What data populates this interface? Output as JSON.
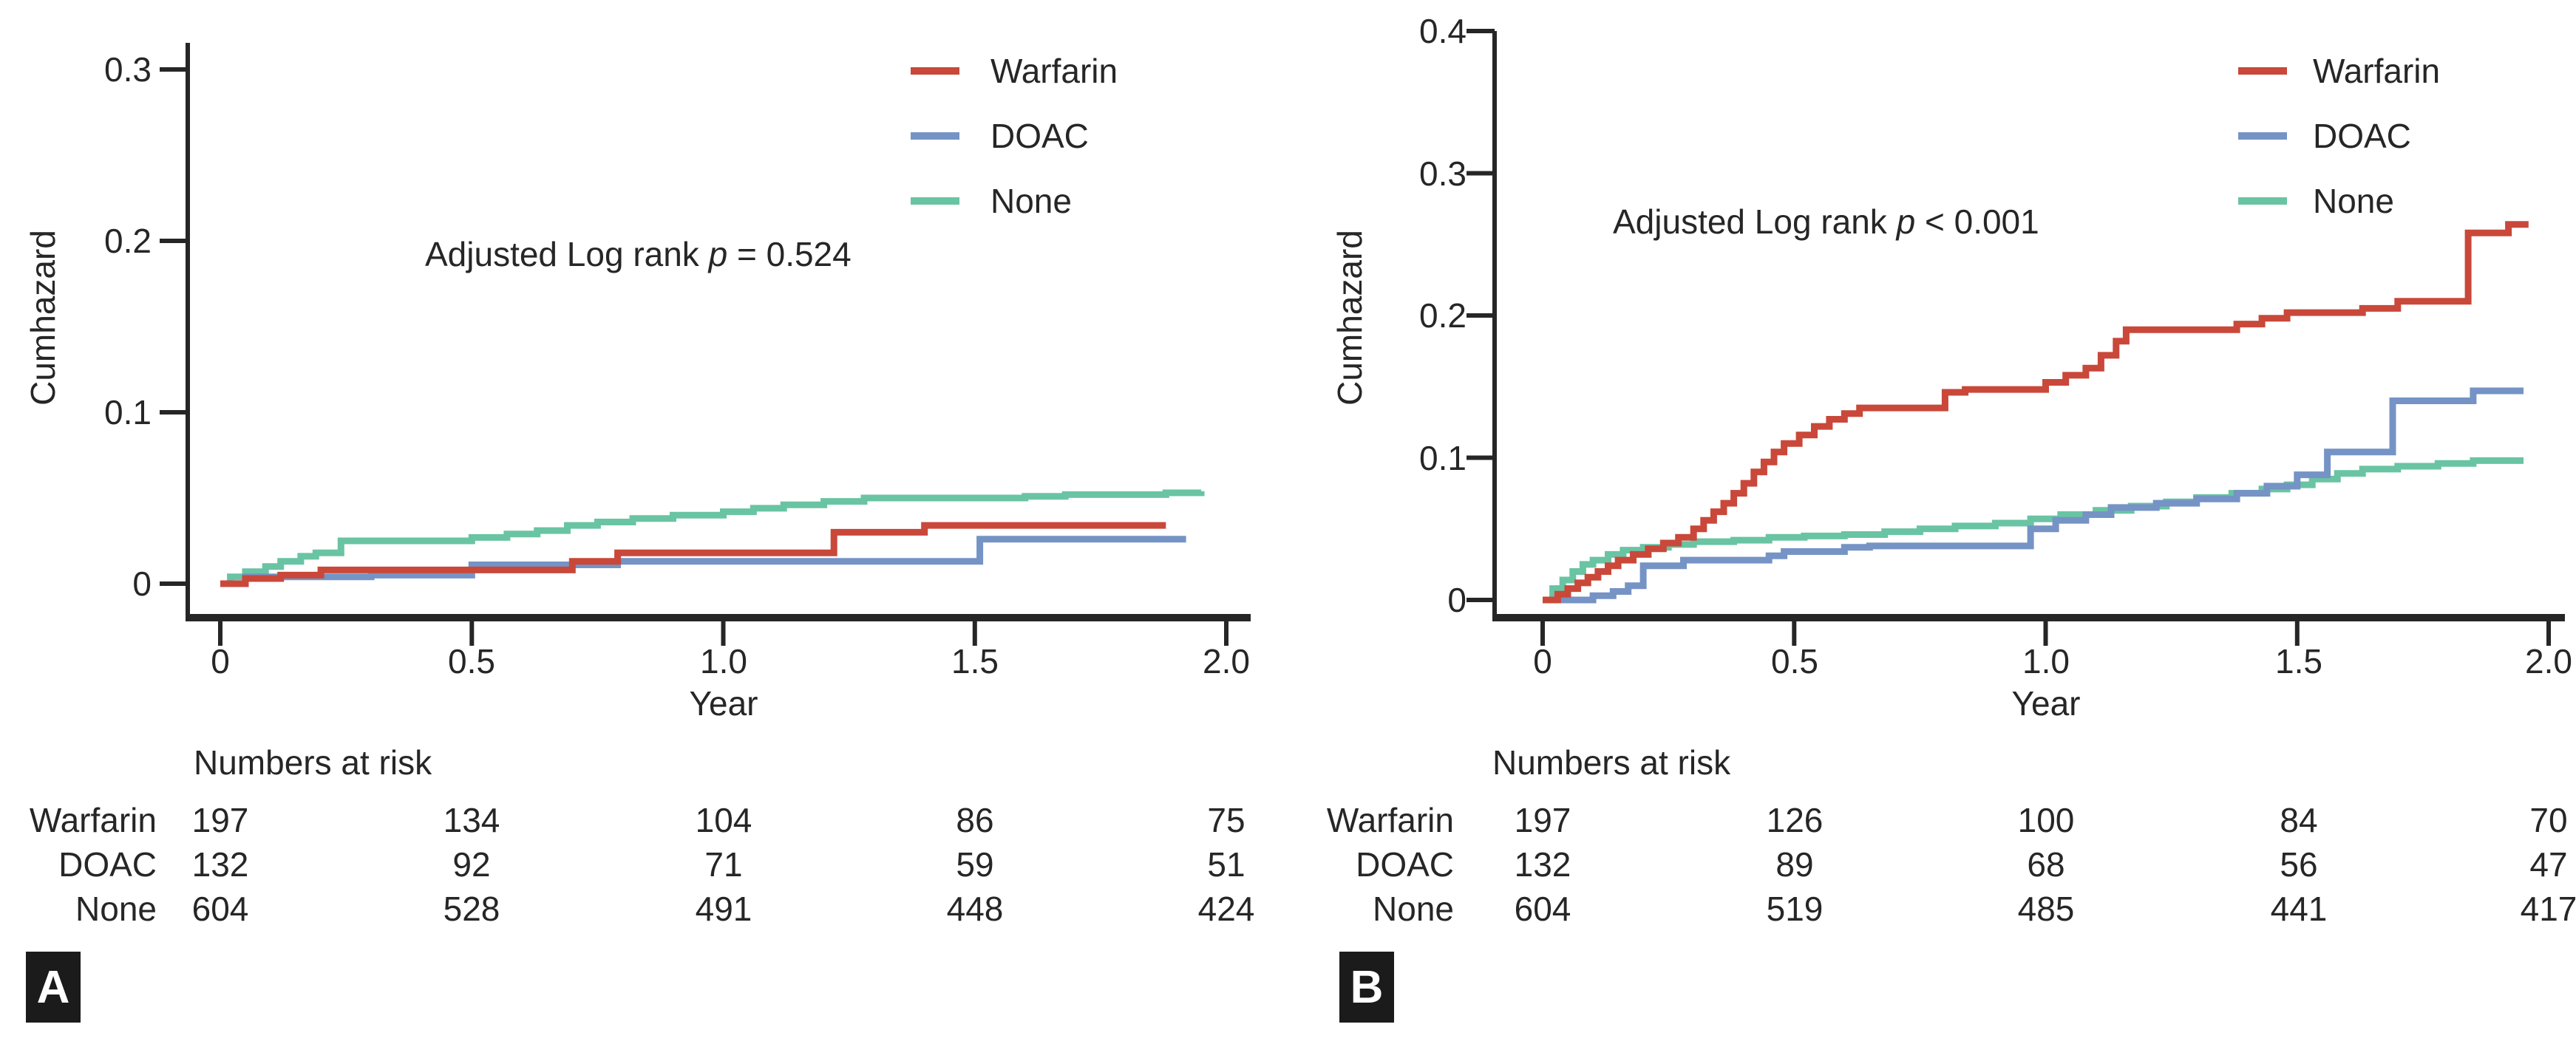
{
  "colors": {
    "warfarin": "#c9483a",
    "doac": "#7593c5",
    "none": "#69c4a3",
    "axis": "#262626",
    "text": "#262626",
    "badge_bg": "#1b1b1b",
    "badge_fg": "#ffffff"
  },
  "chart_data": [
    {
      "panel_label": "A",
      "type": "line",
      "subtype": "step-cumulative-hazard",
      "title": "",
      "xlabel": "Year",
      "ylabel": "Cumhazard",
      "xlim": [
        0,
        2
      ],
      "ylim": [
        0,
        0.3
      ],
      "grid": false,
      "legend_position": "top-right",
      "xticks": [
        "0",
        "0.5",
        "1.0",
        "1.5",
        "2.0"
      ],
      "xtick_values": [
        0,
        0.5,
        1.0,
        1.5,
        2.0
      ],
      "yticks": [
        "0",
        "0.1",
        "0.2",
        "0.3"
      ],
      "ytick_values": [
        0,
        0.1,
        0.2,
        0.3
      ],
      "annotation": {
        "prefix": "Adjusted Log rank ",
        "p": "p",
        "rest": " = 0.524"
      },
      "series": [
        {
          "name": "Warfarin",
          "color_key": "warfarin",
          "points": [
            [
              0,
              0
            ],
            [
              0.05,
              0.003
            ],
            [
              0.12,
              0.005
            ],
            [
              0.2,
              0.008
            ],
            [
              0.7,
              0.013
            ],
            [
              0.79,
              0.018
            ],
            [
              1.22,
              0.03
            ],
            [
              1.4,
              0.034
            ],
            [
              1.88,
              0.034
            ]
          ]
        },
        {
          "name": "DOAC",
          "color_key": "doac",
          "points": [
            [
              0,
              0
            ],
            [
              0.05,
              0.004
            ],
            [
              0.3,
              0.005
            ],
            [
              0.5,
              0.011
            ],
            [
              0.79,
              0.013
            ],
            [
              1.49,
              0.013
            ],
            [
              1.51,
              0.026
            ],
            [
              1.92,
              0.026
            ]
          ]
        },
        {
          "name": "None",
          "color_key": "none",
          "points": [
            [
              0,
              0
            ],
            [
              0.02,
              0.004
            ],
            [
              0.05,
              0.007
            ],
            [
              0.09,
              0.01
            ],
            [
              0.12,
              0.013
            ],
            [
              0.16,
              0.016
            ],
            [
              0.19,
              0.018
            ],
            [
              0.24,
              0.025
            ],
            [
              0.5,
              0.027
            ],
            [
              0.57,
              0.029
            ],
            [
              0.63,
              0.031
            ],
            [
              0.69,
              0.034
            ],
            [
              0.75,
              0.036
            ],
            [
              0.82,
              0.038
            ],
            [
              0.9,
              0.04
            ],
            [
              1.0,
              0.042
            ],
            [
              1.06,
              0.044
            ],
            [
              1.12,
              0.046
            ],
            [
              1.2,
              0.048
            ],
            [
              1.28,
              0.05
            ],
            [
              1.6,
              0.051
            ],
            [
              1.68,
              0.052
            ],
            [
              1.88,
              0.053
            ],
            [
              1.95,
              0.054
            ]
          ]
        }
      ],
      "risk_table": {
        "title": "Numbers at risk",
        "rows": [
          {
            "label": "Warfarin",
            "values": [
              "197",
              "134",
              "104",
              "86",
              "75"
            ]
          },
          {
            "label": "DOAC",
            "values": [
              "132",
              "92",
              "71",
              "59",
              "51"
            ]
          },
          {
            "label": "None",
            "values": [
              "604",
              "528",
              "491",
              "448",
              "424"
            ]
          }
        ]
      }
    },
    {
      "panel_label": "B",
      "type": "line",
      "subtype": "step-cumulative-hazard",
      "title": "",
      "xlabel": "Year",
      "ylabel": "Cumhazard",
      "xlim": [
        0,
        2
      ],
      "ylim": [
        0,
        0.4
      ],
      "grid": false,
      "legend_position": "top-right",
      "xticks": [
        "0",
        "0.5",
        "1.0",
        "1.5",
        "2.0"
      ],
      "xtick_values": [
        0,
        0.5,
        1.0,
        1.5,
        2.0
      ],
      "yticks": [
        "0",
        "0.1",
        "0.2",
        "0.3",
        "0.4"
      ],
      "ytick_values": [
        0,
        0.1,
        0.2,
        0.3,
        0.4
      ],
      "annotation": {
        "prefix": "Adjusted Log rank ",
        "p": "p",
        "rest": " < 0.001"
      },
      "series": [
        {
          "name": "Warfarin",
          "color_key": "warfarin",
          "points": [
            [
              0,
              0
            ],
            [
              0.03,
              0.004
            ],
            [
              0.05,
              0.008
            ],
            [
              0.07,
              0.012
            ],
            [
              0.09,
              0.016
            ],
            [
              0.11,
              0.02
            ],
            [
              0.13,
              0.024
            ],
            [
              0.15,
              0.028
            ],
            [
              0.18,
              0.032
            ],
            [
              0.21,
              0.036
            ],
            [
              0.24,
              0.04
            ],
            [
              0.27,
              0.044
            ],
            [
              0.3,
              0.05
            ],
            [
              0.32,
              0.056
            ],
            [
              0.34,
              0.062
            ],
            [
              0.36,
              0.068
            ],
            [
              0.38,
              0.075
            ],
            [
              0.4,
              0.082
            ],
            [
              0.42,
              0.09
            ],
            [
              0.44,
              0.097
            ],
            [
              0.46,
              0.104
            ],
            [
              0.48,
              0.11
            ],
            [
              0.51,
              0.116
            ],
            [
              0.54,
              0.122
            ],
            [
              0.57,
              0.127
            ],
            [
              0.6,
              0.131
            ],
            [
              0.63,
              0.135
            ],
            [
              0.8,
              0.146
            ],
            [
              0.84,
              0.148
            ],
            [
              1.0,
              0.153
            ],
            [
              1.04,
              0.158
            ],
            [
              1.08,
              0.163
            ],
            [
              1.11,
              0.172
            ],
            [
              1.14,
              0.182
            ],
            [
              1.16,
              0.19
            ],
            [
              1.38,
              0.194
            ],
            [
              1.43,
              0.198
            ],
            [
              1.48,
              0.202
            ],
            [
              1.63,
              0.205
            ],
            [
              1.7,
              0.21
            ],
            [
              1.84,
              0.258
            ],
            [
              1.92,
              0.264
            ],
            [
              1.96,
              0.264
            ]
          ]
        },
        {
          "name": "DOAC",
          "color_key": "doac",
          "points": [
            [
              0,
              0
            ],
            [
              0.1,
              0.003
            ],
            [
              0.14,
              0.006
            ],
            [
              0.17,
              0.01
            ],
            [
              0.2,
              0.024
            ],
            [
              0.28,
              0.028
            ],
            [
              0.45,
              0.031
            ],
            [
              0.48,
              0.034
            ],
            [
              0.6,
              0.037
            ],
            [
              0.65,
              0.038
            ],
            [
              0.97,
              0.05
            ],
            [
              1.02,
              0.056
            ],
            [
              1.08,
              0.06
            ],
            [
              1.13,
              0.065
            ],
            [
              1.22,
              0.068
            ],
            [
              1.3,
              0.071
            ],
            [
              1.38,
              0.075
            ],
            [
              1.44,
              0.08
            ],
            [
              1.5,
              0.088
            ],
            [
              1.56,
              0.104
            ],
            [
              1.69,
              0.14
            ],
            [
              1.85,
              0.147
            ],
            [
              1.95,
              0.147
            ]
          ]
        },
        {
          "name": "None",
          "color_key": "none",
          "points": [
            [
              0,
              0
            ],
            [
              0.02,
              0.008
            ],
            [
              0.04,
              0.014
            ],
            [
              0.06,
              0.02
            ],
            [
              0.08,
              0.025
            ],
            [
              0.1,
              0.028
            ],
            [
              0.13,
              0.032
            ],
            [
              0.16,
              0.035
            ],
            [
              0.2,
              0.037
            ],
            [
              0.25,
              0.039
            ],
            [
              0.3,
              0.041
            ],
            [
              0.38,
              0.042
            ],
            [
              0.45,
              0.044
            ],
            [
              0.52,
              0.045
            ],
            [
              0.6,
              0.046
            ],
            [
              0.68,
              0.048
            ],
            [
              0.75,
              0.05
            ],
            [
              0.82,
              0.052
            ],
            [
              0.9,
              0.054
            ],
            [
              0.97,
              0.057
            ],
            [
              1.03,
              0.06
            ],
            [
              1.1,
              0.063
            ],
            [
              1.17,
              0.066
            ],
            [
              1.24,
              0.069
            ],
            [
              1.3,
              0.072
            ],
            [
              1.37,
              0.075
            ],
            [
              1.43,
              0.078
            ],
            [
              1.48,
              0.081
            ],
            [
              1.53,
              0.085
            ],
            [
              1.58,
              0.089
            ],
            [
              1.63,
              0.092
            ],
            [
              1.7,
              0.094
            ],
            [
              1.78,
              0.096
            ],
            [
              1.85,
              0.098
            ],
            [
              1.95,
              0.098
            ]
          ]
        }
      ],
      "risk_table": {
        "title": "Numbers at risk",
        "rows": [
          {
            "label": "Warfarin",
            "values": [
              "197",
              "126",
              "100",
              "84",
              "70"
            ]
          },
          {
            "label": "DOAC",
            "values": [
              "132",
              "89",
              "68",
              "56",
              "47"
            ]
          },
          {
            "label": "None",
            "values": [
              "604",
              "519",
              "485",
              "441",
              "417"
            ]
          }
        ]
      }
    }
  ]
}
